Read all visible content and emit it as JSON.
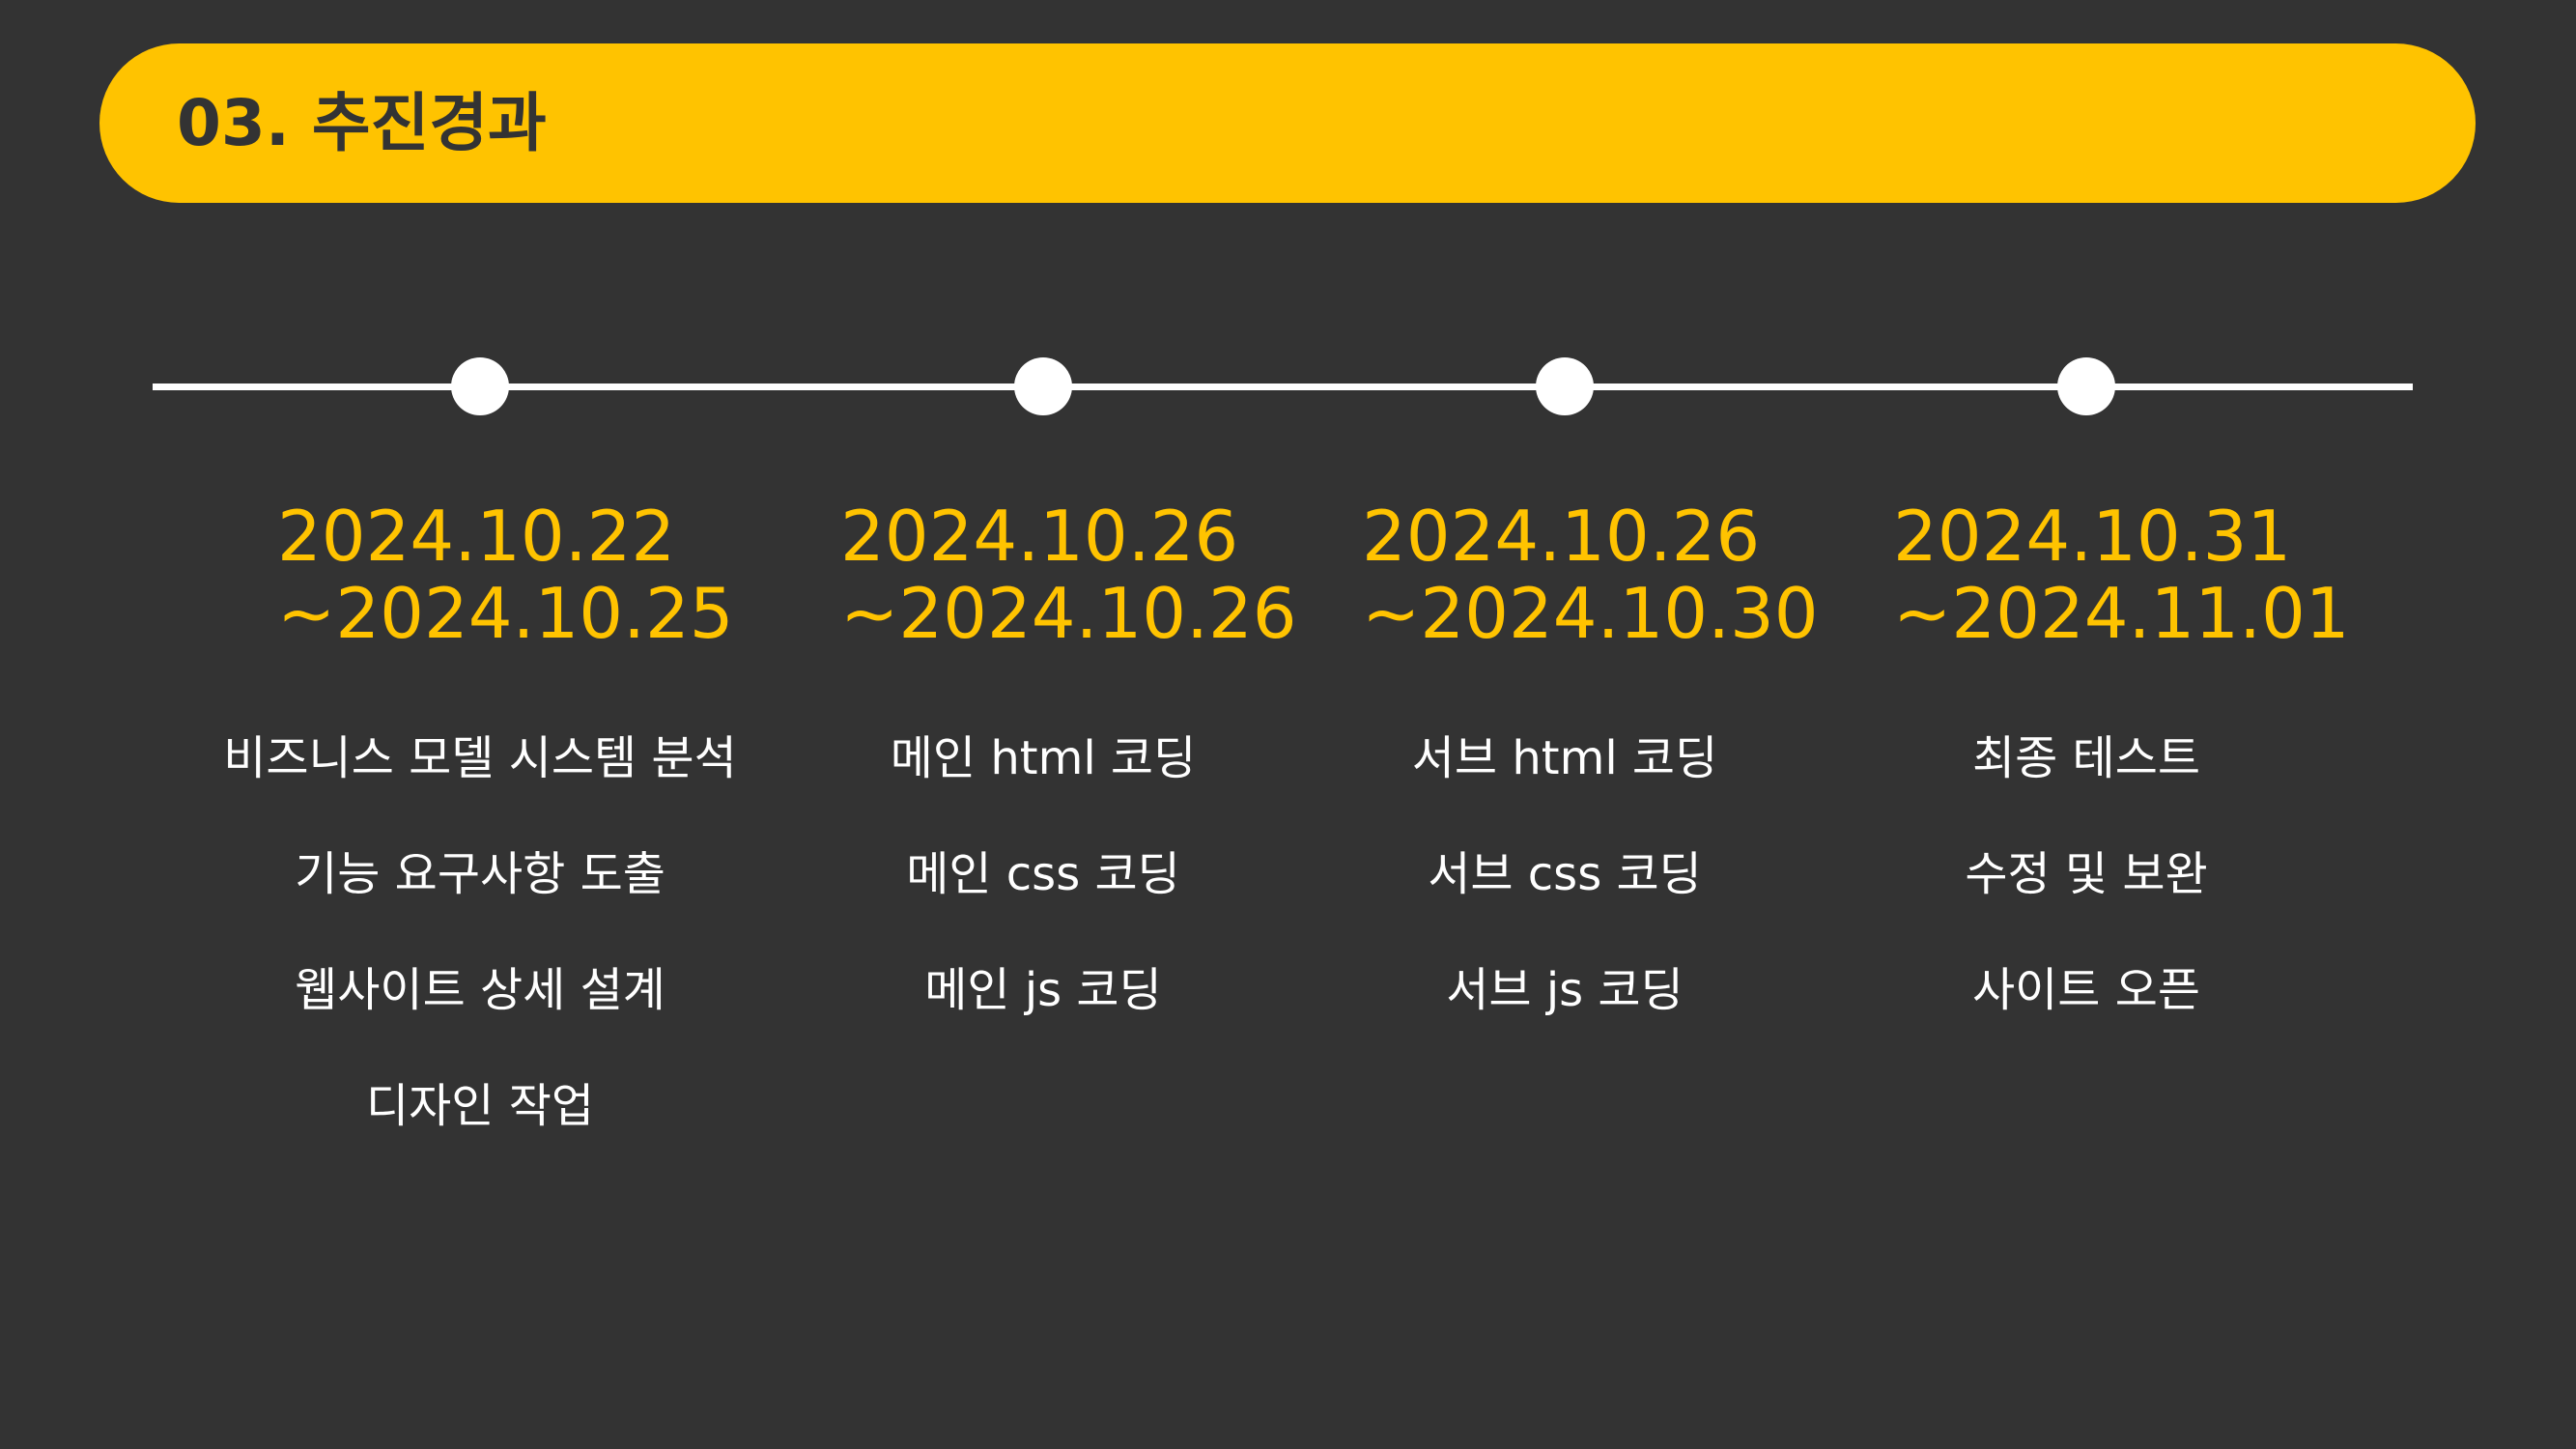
{
  "header": {
    "title": "03. 추진경과"
  },
  "colors": {
    "background": "#333333",
    "accent": "#FFC300",
    "text": "#FFFFFF"
  },
  "phases": [
    {
      "date_start": "2024.10.22",
      "date_end": "~2024.10.25",
      "tasks": [
        "비즈니스 모델 시스템 분석",
        "기능 요구사항 도출",
        "웹사이트 상세 설계",
        "디자인 작업"
      ]
    },
    {
      "date_start": "2024.10.26",
      "date_end": "~2024.10.26",
      "tasks": [
        "메인 html 코딩",
        "메인 css 코딩",
        "메인 js 코딩"
      ]
    },
    {
      "date_start": "2024.10.26",
      "date_end": "~2024.10.30",
      "tasks": [
        "서브 html 코딩",
        "서브 css 코딩",
        "서브 js 코딩"
      ]
    },
    {
      "date_start": "2024.10.31",
      "date_end": "~2024.11.01",
      "tasks": [
        "최종 테스트",
        "수정 및 보완",
        "사이트 오픈"
      ]
    }
  ]
}
